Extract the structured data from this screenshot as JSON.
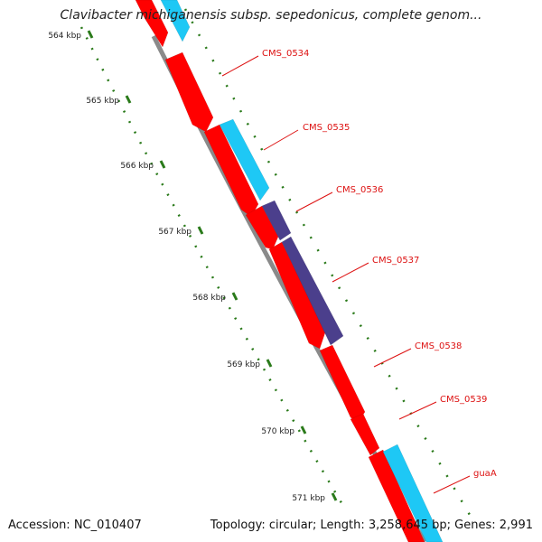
{
  "title": "Clavibacter michiganensis subsp. sepedonicus, complete genom...",
  "footer": {
    "accession": "Accession: NC_010407",
    "topology": "Topology: circular; Length: 3,258,645 bp; Genes: 2,991"
  },
  "colors": {
    "forward_gene": "#ff0000",
    "reverse_gene": "#1ec8f5",
    "purple_gene": "#4b3f8c",
    "label_red": "#dd1111",
    "tick_green": "#2a7a1a",
    "backbone": "#8a8a8a"
  },
  "ticks": [
    "564 kbp",
    "565 kbp",
    "566 kbp",
    "567 kbp",
    "568 kbp",
    "569 kbp",
    "570 kbp",
    "571 kbp"
  ],
  "gene_labels": [
    "CMS_0534",
    "CMS_0535",
    "CMS_0536",
    "CMS_0537",
    "CMS_0538",
    "CMS_0539",
    "guaA"
  ]
}
